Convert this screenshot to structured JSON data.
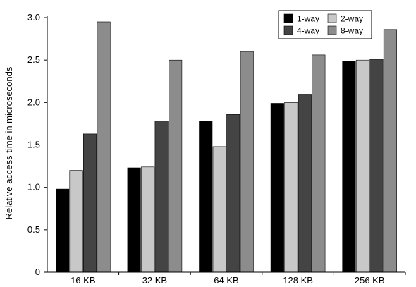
{
  "chart_data": {
    "type": "bar",
    "title": "",
    "xlabel": "",
    "ylabel": "Relative access time in microseconds",
    "ylim": [
      0,
      3.0
    ],
    "yticks": [
      "0",
      "0.5",
      "1.0",
      "1.5",
      "2.0",
      "2.5",
      "3.0"
    ],
    "ytick_values": [
      0,
      0.5,
      1.0,
      1.5,
      2.0,
      2.5,
      3.0
    ],
    "categories": [
      "16 KB",
      "32 KB",
      "64 KB",
      "128 KB",
      "256 KB"
    ],
    "series": [
      {
        "name": "1-way",
        "color": "#000000",
        "values": [
          0.98,
          1.23,
          1.78,
          1.99,
          2.49
        ]
      },
      {
        "name": "2-way",
        "color": "#c8c8c8",
        "values": [
          1.2,
          1.24,
          1.48,
          2.0,
          2.5
        ]
      },
      {
        "name": "4-way",
        "color": "#444444",
        "values": [
          1.63,
          1.78,
          1.86,
          2.09,
          2.51
        ]
      },
      {
        "name": "8-way",
        "color": "#8c8c8c",
        "values": [
          2.95,
          2.5,
          2.6,
          2.56,
          2.86
        ]
      }
    ],
    "grid": false,
    "legend": "top-right"
  }
}
